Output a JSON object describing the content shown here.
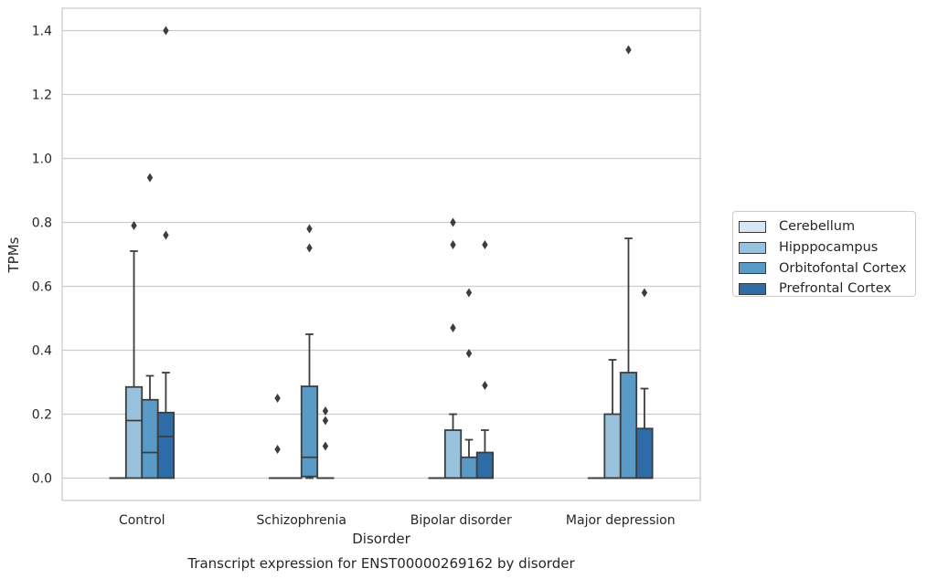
{
  "chart_data": {
    "type": "box",
    "title": "Transcript expression for ENST00000269162 by disorder",
    "xlabel": "Disorder",
    "ylabel": "TPMs",
    "ylim": [
      -0.07,
      1.47
    ],
    "yticks": [
      0.0,
      0.2,
      0.4,
      0.6,
      0.8,
      1.0,
      1.2,
      1.4
    ],
    "ytick_labels": [
      "0.0",
      "0.2",
      "0.4",
      "0.6",
      "0.8",
      "1.0",
      "1.2",
      "1.4"
    ],
    "grid": "horizontal",
    "legend_position": "right",
    "categories": [
      "Control",
      "Schizophrenia",
      "Bipolar disorder",
      "Major depression"
    ],
    "series": [
      {
        "name": "Cerebellum",
        "color": "#d6e6f4",
        "boxes": [
          {
            "q1": 0,
            "median": 0,
            "q3": 0,
            "whisker_low": 0,
            "whisker_high": 0,
            "outliers": []
          },
          {
            "q1": 0,
            "median": 0,
            "q3": 0,
            "whisker_low": 0,
            "whisker_high": 0,
            "outliers": [
              0.09,
              0.25
            ]
          },
          {
            "q1": 0,
            "median": 0,
            "q3": 0,
            "whisker_low": 0,
            "whisker_high": 0,
            "outliers": []
          },
          {
            "q1": 0,
            "median": 0,
            "q3": 0,
            "whisker_low": 0,
            "whisker_high": 0,
            "outliers": []
          }
        ]
      },
      {
        "name": "Hipppocampus",
        "color": "#99c2dd",
        "boxes": [
          {
            "q1": 0,
            "median": 0.18,
            "q3": 0.285,
            "whisker_low": 0,
            "whisker_high": 0.71,
            "outliers": [
              0.79
            ]
          },
          {
            "q1": 0,
            "median": 0,
            "q3": 0,
            "whisker_low": 0,
            "whisker_high": 0,
            "outliers": []
          },
          {
            "q1": 0,
            "median": 0,
            "q3": 0.15,
            "whisker_low": 0,
            "whisker_high": 0.2,
            "outliers": [
              0.47,
              0.73,
              0.8
            ]
          },
          {
            "q1": 0,
            "median": 0,
            "q3": 0.2,
            "whisker_low": 0,
            "whisker_high": 0.37,
            "outliers": []
          }
        ]
      },
      {
        "name": "Orbitofontal Cortex",
        "color": "#5a9ac6",
        "boxes": [
          {
            "q1": 0,
            "median": 0.08,
            "q3": 0.245,
            "whisker_low": 0,
            "whisker_high": 0.32,
            "outliers": [
              0.94
            ]
          },
          {
            "q1": 0.005,
            "median": 0.065,
            "q3": 0.287,
            "whisker_low": 0,
            "whisker_high": 0.45,
            "outliers": [
              0.72,
              0.78
            ]
          },
          {
            "q1": 0,
            "median": 0,
            "q3": 0.065,
            "whisker_low": 0,
            "whisker_high": 0.12,
            "outliers": [
              0.39,
              0.58
            ]
          },
          {
            "q1": 0,
            "median": 0,
            "q3": 0.33,
            "whisker_low": 0,
            "whisker_high": 0.75,
            "outliers": [
              1.34
            ]
          }
        ]
      },
      {
        "name": "Prefrontal Cortex",
        "color": "#2d6ca7",
        "boxes": [
          {
            "q1": 0,
            "median": 0.13,
            "q3": 0.205,
            "whisker_low": 0,
            "whisker_high": 0.33,
            "outliers": [
              0.76,
              1.4
            ]
          },
          {
            "q1": 0,
            "median": 0,
            "q3": 0,
            "whisker_low": 0,
            "whisker_high": 0,
            "outliers": [
              0.1,
              0.18,
              0.21
            ]
          },
          {
            "q1": 0,
            "median": 0,
            "q3": 0.08,
            "whisker_low": 0,
            "whisker_high": 0.15,
            "outliers": [
              0.29,
              0.73
            ]
          },
          {
            "q1": 0,
            "median": 0,
            "q3": 0.155,
            "whisker_low": 0,
            "whisker_high": 0.28,
            "outliers": [
              0.58
            ]
          }
        ]
      }
    ]
  }
}
